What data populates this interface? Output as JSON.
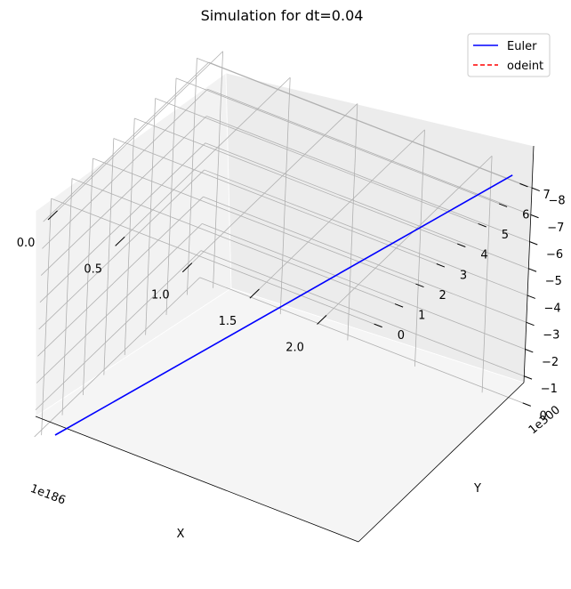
{
  "chart_data": {
    "type": "line",
    "projection": "3d",
    "title": "Simulation for dt=0.04",
    "xlabel": "X",
    "ylabel": "Y",
    "zlabel": "",
    "x_offset_label": "1e186",
    "y_offset_label": "1e300",
    "x_ticks": [
      "0.0",
      "0.5",
      "1.0",
      "1.5",
      "2.0"
    ],
    "y_ticks": [
      "0",
      "1",
      "2",
      "3",
      "4",
      "5",
      "6",
      "7"
    ],
    "z_ticks": [
      "0",
      "−1",
      "−2",
      "−3",
      "−4",
      "−5",
      "−6",
      "−7",
      "−8"
    ],
    "xlim": [
      -0.1,
      2.3
    ],
    "ylim": [
      -0.35,
      7.6
    ],
    "zlim": [
      -8.6,
      0.2
    ],
    "grid": true,
    "legend_position": "top-right",
    "series": [
      {
        "name": "Euler",
        "color": "#0000ff",
        "style": "solid",
        "points": [
          {
            "x": 0.0,
            "y": 0.0,
            "z": 0.0
          },
          {
            "x": 2.2,
            "y": 7.3,
            "z": -8.5
          }
        ]
      },
      {
        "name": "odeint",
        "color": "#ff0000",
        "style": "dashed",
        "points": []
      }
    ]
  }
}
